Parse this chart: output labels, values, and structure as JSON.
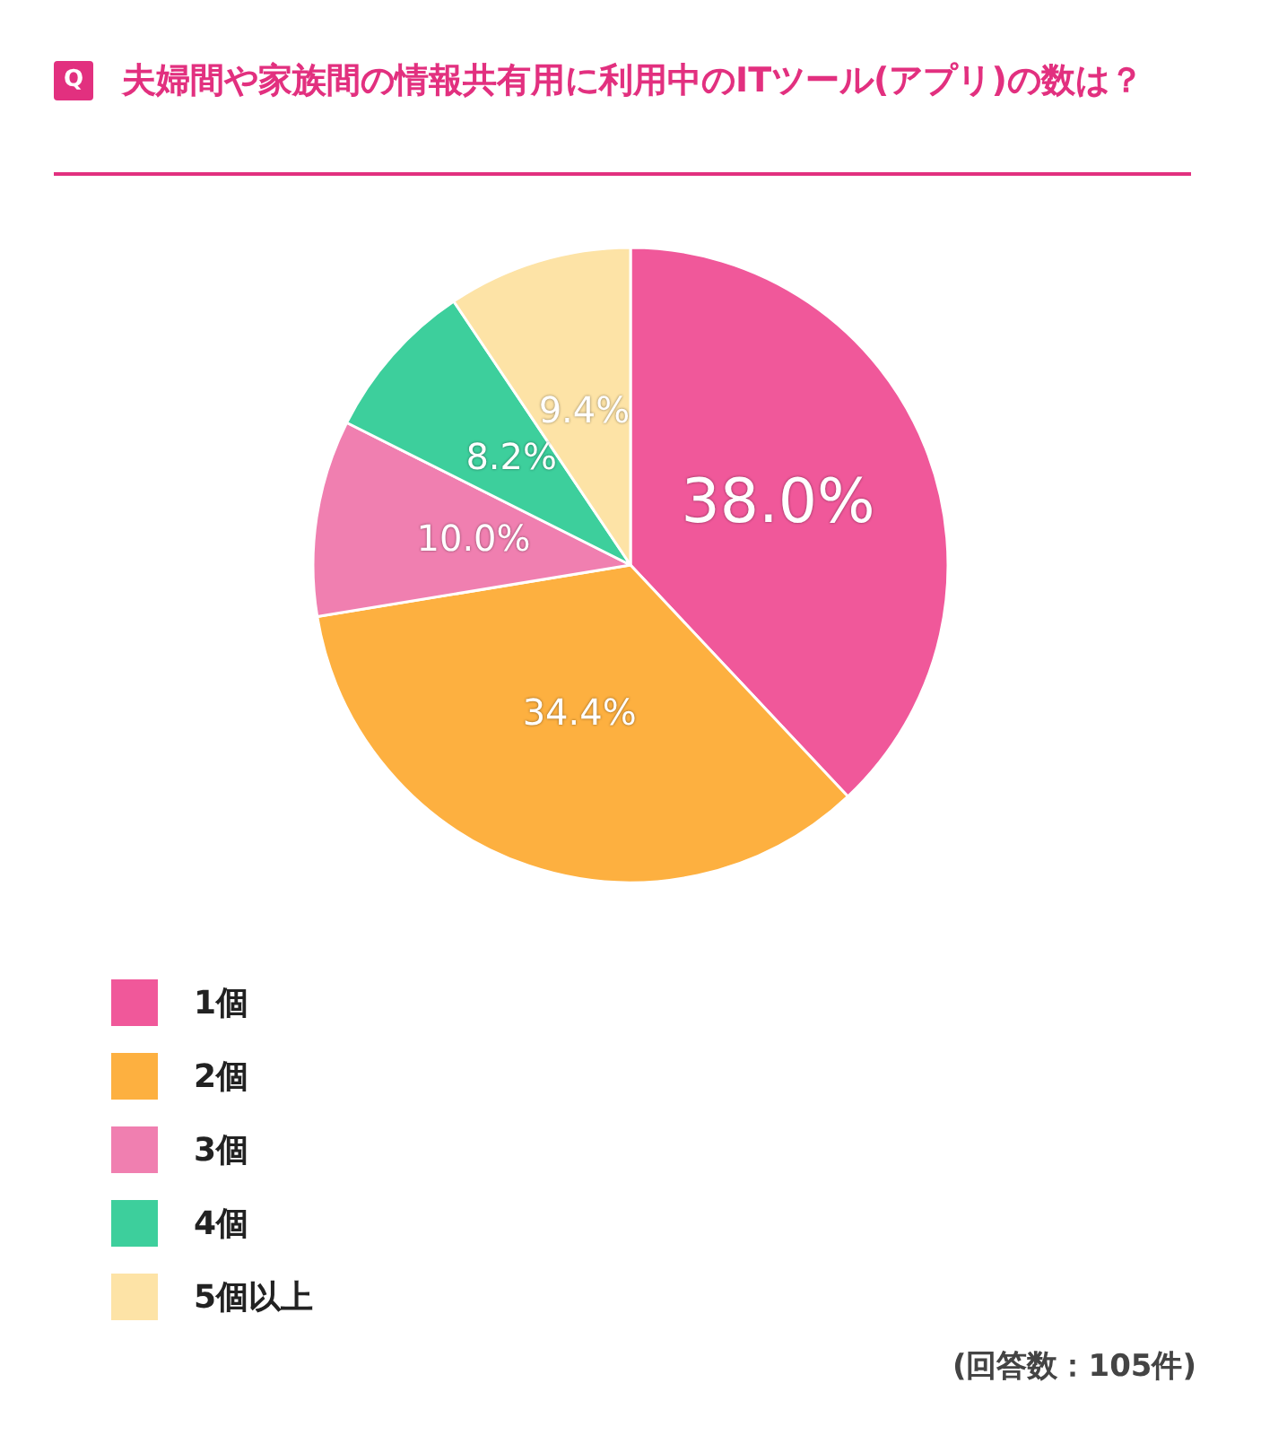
{
  "chart_data": {
    "type": "pie",
    "title": "夫婦間や家族間の情報共有用に利用中のITツール(アプリ)の数は？",
    "categories": [
      "1個",
      "2個",
      "3個",
      "4個",
      "5個以上"
    ],
    "values": [
      38.0,
      34.4,
      10.0,
      8.2,
      9.4
    ],
    "colors": [
      "#f0589a",
      "#fdb040",
      "#f07fb0",
      "#3dcf9c",
      "#fde3a6"
    ],
    "value_labels": [
      "38.0%",
      "34.4%",
      "10.0%",
      "8.2%",
      "9.4%"
    ],
    "legend": "bottom left",
    "annotations": [
      "Q",
      "(回答数：105件)"
    ]
  }
}
